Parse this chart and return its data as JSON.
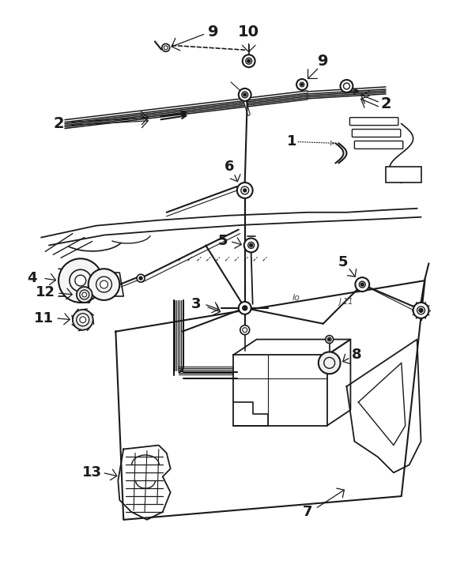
{
  "bg_color": "#ffffff",
  "line_color": "#1a1a1a",
  "fig_width": 5.68,
  "fig_height": 7.43,
  "dpi": 100
}
